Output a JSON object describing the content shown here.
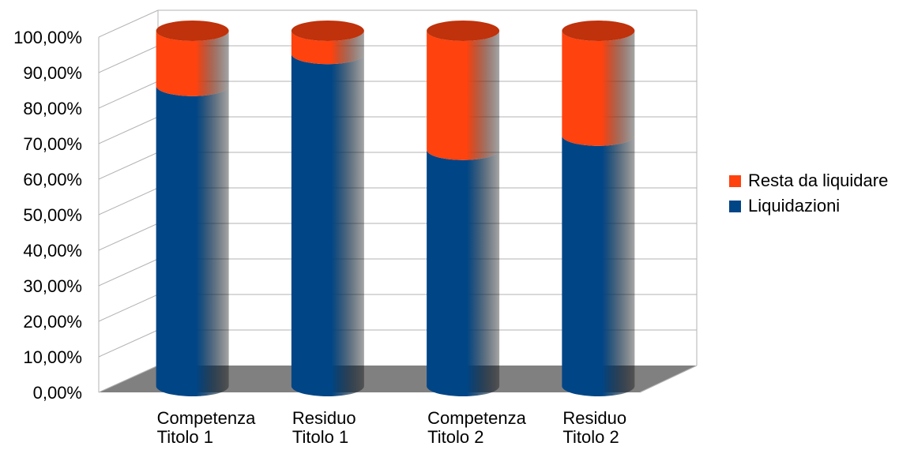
{
  "chart_data": {
    "type": "bar",
    "stacked": true,
    "style": "3d-cylinder",
    "categories": [
      [
        "Competenza",
        "Titolo 1"
      ],
      [
        "Residuo",
        "Titolo 1"
      ],
      [
        "Competenza",
        "Titolo 2"
      ],
      [
        "Residuo",
        "Titolo 2"
      ]
    ],
    "series": [
      {
        "name": "Liquidazioni",
        "color": "#004586",
        "values": [
          84.5,
          93.5,
          66.5,
          70.5
        ]
      },
      {
        "name": "Resta da liquidare",
        "color": "#ff420e",
        "values": [
          15.5,
          6.5,
          33.5,
          29.5
        ]
      }
    ],
    "y_ticks": [
      "0,00%",
      "10,00%",
      "20,00%",
      "30,00%",
      "40,00%",
      "50,00%",
      "60,00%",
      "70,00%",
      "80,00%",
      "90,00%",
      "100,00%"
    ],
    "ylim": [
      0,
      100
    ],
    "grid": true,
    "legend_position": "right",
    "legend": [
      {
        "label": "Resta da liquidare",
        "color": "#ff420e"
      },
      {
        "label": "Liquidazioni",
        "color": "#004586"
      }
    ],
    "floor_color": "#808080",
    "grid_color": "#b3b3b3"
  }
}
